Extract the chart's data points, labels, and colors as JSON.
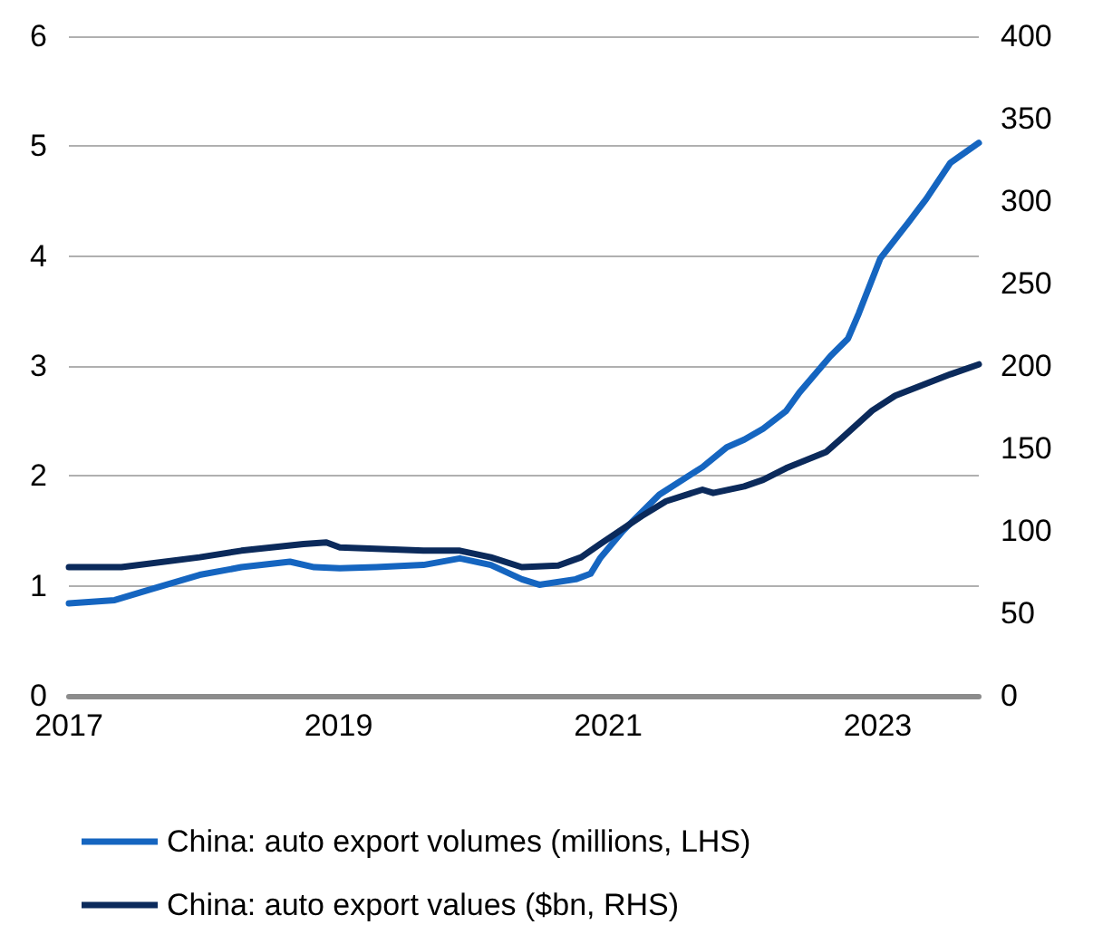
{
  "chart_data": {
    "type": "line",
    "xlim": [
      2017,
      2023.75
    ],
    "xticks": [
      2017,
      2019,
      2021,
      2023
    ],
    "ylim": [
      0,
      6
    ],
    "yticks": [
      0,
      1,
      2,
      3,
      4,
      5,
      6
    ],
    "y2lim": [
      0,
      400
    ],
    "y2ticks": [
      0,
      50,
      100,
      150,
      200,
      250,
      300,
      350,
      400
    ],
    "grid": "y",
    "legend": "bottom",
    "marker": "none",
    "line_style": "solid",
    "series": [
      {
        "name": "China: auto export volumes (millions, LHS)",
        "color": "#1565c0",
        "x": [
          2017.0,
          2017.34,
          2017.61,
          2017.97,
          2018.28,
          2018.64,
          2018.82,
          2019.01,
          2019.28,
          2019.63,
          2019.9,
          2020.13,
          2020.36,
          2020.49,
          2020.76,
          2020.87,
          2020.94,
          2021.11,
          2021.38,
          2021.7,
          2021.88,
          2022.01,
          2022.15,
          2022.32,
          2022.42,
          2022.65,
          2022.78,
          2022.86,
          2023.02,
          2023.23,
          2023.36,
          2023.54,
          2023.75
        ],
        "values": [
          0.84,
          0.87,
          0.97,
          1.1,
          1.17,
          1.22,
          1.17,
          1.16,
          1.17,
          1.19,
          1.25,
          1.19,
          1.06,
          1.01,
          1.06,
          1.11,
          1.25,
          1.5,
          1.83,
          2.08,
          2.26,
          2.33,
          2.43,
          2.59,
          2.76,
          3.09,
          3.25,
          3.48,
          3.98,
          4.31,
          4.52,
          4.85,
          5.03
        ]
      },
      {
        "name": "China: auto export values ($bn, RHS)",
        "color": "#0b2a5b",
        "axis": "y2",
        "x": [
          2017.0,
          2017.39,
          2017.97,
          2018.28,
          2018.74,
          2018.91,
          2019.01,
          2019.63,
          2019.9,
          2020.13,
          2020.36,
          2020.63,
          2020.8,
          2020.94,
          2021.25,
          2021.43,
          2021.7,
          2021.78,
          2022.01,
          2022.15,
          2022.32,
          2022.62,
          2022.73,
          2022.96,
          2023.13,
          2023.32,
          2023.54,
          2023.75
        ],
        "values": [
          78,
          78,
          84,
          88,
          92,
          93,
          90,
          88,
          88,
          84,
          78,
          79,
          84,
          92,
          109,
          118,
          125,
          123,
          127,
          131,
          138,
          148,
          156,
          173,
          182,
          188,
          195,
          201
        ]
      }
    ]
  }
}
